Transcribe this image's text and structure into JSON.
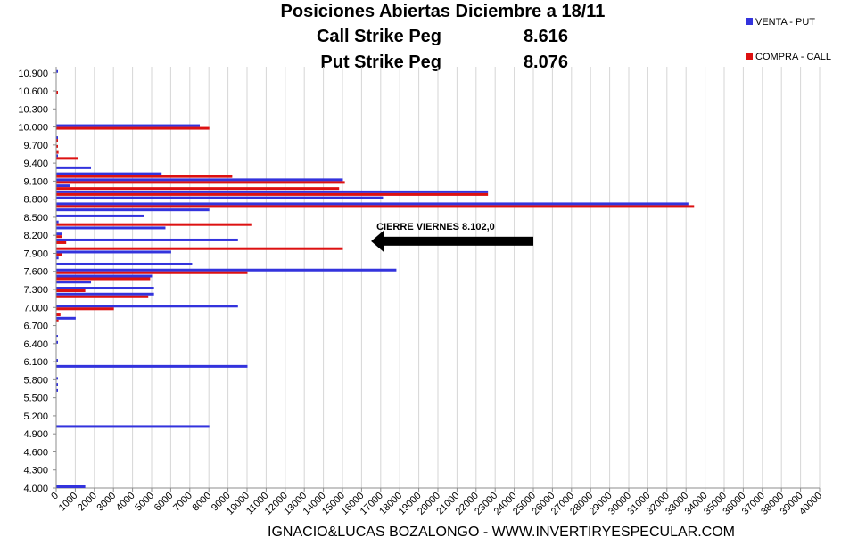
{
  "header": {
    "title": "Posiciones Abiertas Diciembre a 18/11",
    "call_label": "Call Strike Peg",
    "call_value": "8.616",
    "put_label": "Put Strike Peg",
    "put_value": "8.076"
  },
  "footer": {
    "credit": "IGNACIO&LUCAS BOZALONGO - WWW.INVERTIRYESPECULAR.COM"
  },
  "chart_data": {
    "type": "bar",
    "orientation": "horizontal",
    "title": "Posiciones Abiertas Diciembre a 18/11",
    "xlim": [
      0,
      40000
    ],
    "x_ticks": [
      "0",
      "1000",
      "2000",
      "3000",
      "4000",
      "5000",
      "6000",
      "7000",
      "8000",
      "9000",
      "10000",
      "11000",
      "12000",
      "13000",
      "14000",
      "15000",
      "16000",
      "17000",
      "18000",
      "19000",
      "20000",
      "21000",
      "22000",
      "23000",
      "24000",
      "25000",
      "26000",
      "27000",
      "28000",
      "29000",
      "30000",
      "31000",
      "32000",
      "33000",
      "34000",
      "35000",
      "36000",
      "37000",
      "38000",
      "39000",
      "40000"
    ],
    "y_range": [
      4000,
      11000
    ],
    "y_ticks": [
      "4.000",
      "4.300",
      "4.600",
      "4.900",
      "5.200",
      "5.500",
      "5.800",
      "6.100",
      "6.400",
      "6.700",
      "7.000",
      "7.300",
      "7.600",
      "7.900",
      "8.200",
      "8.500",
      "8.800",
      "9.100",
      "9.400",
      "9.700",
      "10.000",
      "10.300",
      "10.600",
      "10.900"
    ],
    "grid": true,
    "legend_position": "top-right",
    "series": [
      {
        "name": "VENTA - PUT",
        "color": "#3333dd",
        "points": [
          {
            "strike": 4000,
            "value": 1500
          },
          {
            "strike": 5000,
            "value": 8000
          },
          {
            "strike": 5600,
            "value": 50
          },
          {
            "strike": 5700,
            "value": 50
          },
          {
            "strike": 5800,
            "value": 50
          },
          {
            "strike": 6000,
            "value": 10000
          },
          {
            "strike": 6100,
            "value": 50
          },
          {
            "strike": 6400,
            "value": 50
          },
          {
            "strike": 6500,
            "value": 50
          },
          {
            "strike": 6800,
            "value": 1000
          },
          {
            "strike": 7000,
            "value": 9500
          },
          {
            "strike": 7200,
            "value": 5100
          },
          {
            "strike": 7300,
            "value": 5100
          },
          {
            "strike": 7400,
            "value": 1800
          },
          {
            "strike": 7500,
            "value": 5000
          },
          {
            "strike": 7600,
            "value": 17800
          },
          {
            "strike": 7700,
            "value": 7100
          },
          {
            "strike": 7800,
            "value": 100
          },
          {
            "strike": 7900,
            "value": 6000
          },
          {
            "strike": 8100,
            "value": 9500
          },
          {
            "strike": 8200,
            "value": 300
          },
          {
            "strike": 8300,
            "value": 5700
          },
          {
            "strike": 8400,
            "value": 100
          },
          {
            "strike": 8500,
            "value": 4600
          },
          {
            "strike": 8600,
            "value": 8000
          },
          {
            "strike": 8700,
            "value": 33100
          },
          {
            "strike": 8800,
            "value": 17100
          },
          {
            "strike": 8900,
            "value": 22600
          },
          {
            "strike": 9000,
            "value": 700
          },
          {
            "strike": 9100,
            "value": 15000
          },
          {
            "strike": 9200,
            "value": 5500
          },
          {
            "strike": 9300,
            "value": 1800
          },
          {
            "strike": 9500,
            "value": 50
          },
          {
            "strike": 9800,
            "value": 50
          },
          {
            "strike": 10000,
            "value": 7500
          },
          {
            "strike": 10900,
            "value": 50
          }
        ]
      },
      {
        "name": "COMPRA - CALL",
        "color": "#dd1111",
        "points": [
          {
            "strike": 6800,
            "value": 100
          },
          {
            "strike": 6900,
            "value": 200
          },
          {
            "strike": 7000,
            "value": 3000
          },
          {
            "strike": 7200,
            "value": 4800
          },
          {
            "strike": 7300,
            "value": 1500
          },
          {
            "strike": 7500,
            "value": 4900
          },
          {
            "strike": 7600,
            "value": 10000
          },
          {
            "strike": 7900,
            "value": 300
          },
          {
            "strike": 8000,
            "value": 15000
          },
          {
            "strike": 8100,
            "value": 500
          },
          {
            "strike": 8200,
            "value": 300
          },
          {
            "strike": 8400,
            "value": 10200
          },
          {
            "strike": 8700,
            "value": 33400
          },
          {
            "strike": 8900,
            "value": 22600
          },
          {
            "strike": 9000,
            "value": 14800
          },
          {
            "strike": 9100,
            "value": 15100
          },
          {
            "strike": 9200,
            "value": 9200
          },
          {
            "strike": 9500,
            "value": 1100
          },
          {
            "strike": 9600,
            "value": 100
          },
          {
            "strike": 9700,
            "value": 50
          },
          {
            "strike": 9800,
            "value": 50
          },
          {
            "strike": 10000,
            "value": 8000
          },
          {
            "strike": 10600,
            "value": 50
          }
        ]
      }
    ],
    "annotation": {
      "text": "CIERRE VIERNES  8.102,0",
      "strike": 8102,
      "arrow_from_value": 25000,
      "arrow_to_value": 16500
    }
  }
}
